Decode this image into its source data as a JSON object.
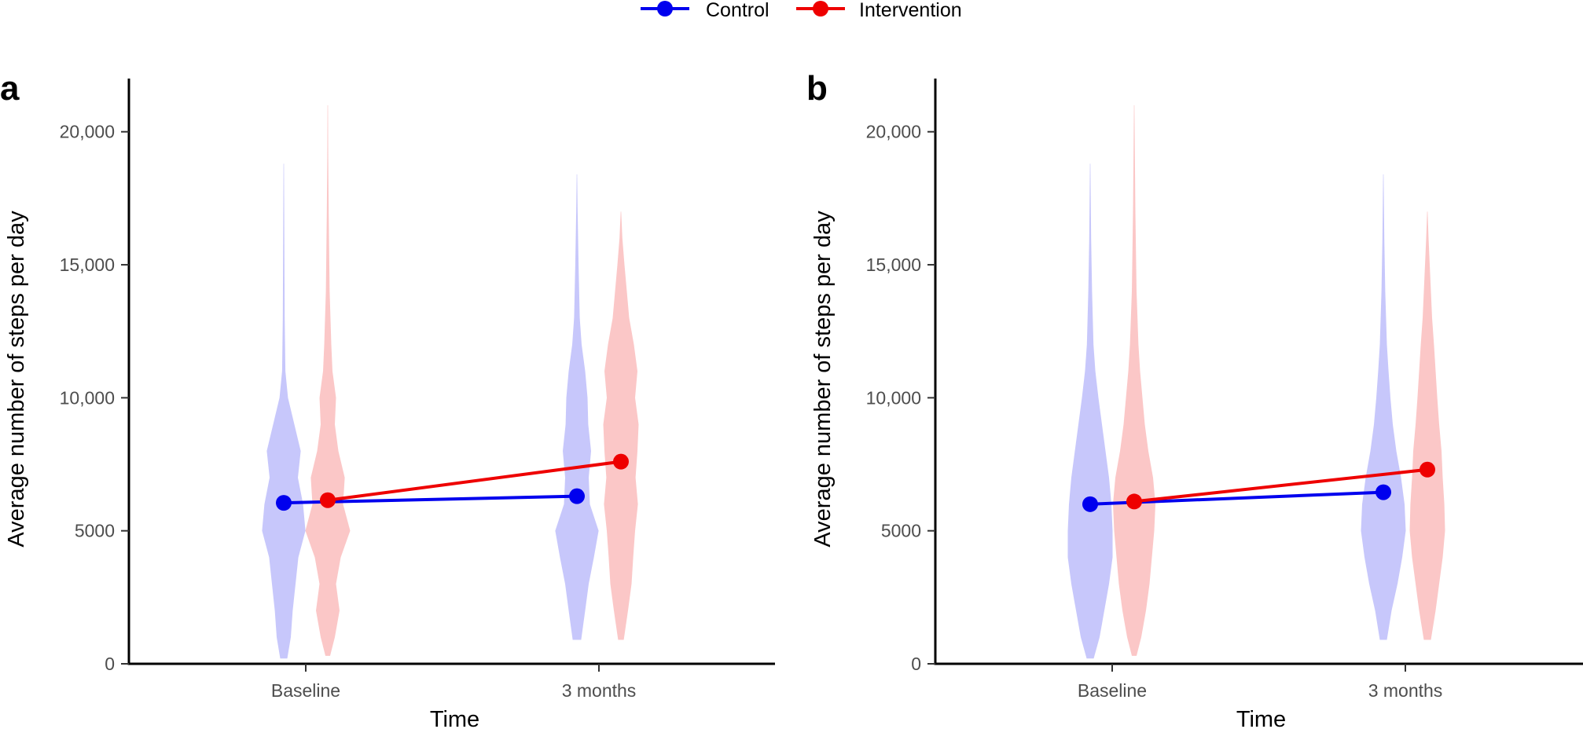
{
  "legend": [
    {
      "name": "Control",
      "color": "#0000ee"
    },
    {
      "name": "Intervention",
      "color": "#ee0000"
    }
  ],
  "chart_data": [
    {
      "type": "line",
      "panel_label": "a",
      "title": "",
      "xlabel": "Time",
      "ylabel": "Average number of steps per day",
      "categories": [
        "Baseline",
        "3 months"
      ],
      "ylim": [
        0,
        22000
      ],
      "yticks": [
        0,
        5000,
        10000,
        15000,
        20000
      ],
      "ytick_labels": [
        "0",
        "5000",
        "10,000",
        "15,000",
        "20,000"
      ],
      "grid": false,
      "legend_position": "top",
      "series": [
        {
          "name": "Control",
          "color": "#0000ee",
          "values": [
            6050,
            6300
          ],
          "distributions": [
            {
              "min": 200,
              "max": 18800,
              "profile": [
                [
                  200,
                  0.15
                ],
                [
                  1000,
                  0.3
                ],
                [
                  2000,
                  0.38
                ],
                [
                  3000,
                  0.5
                ],
                [
                  4000,
                  0.62
                ],
                [
                  5000,
                  0.92
                ],
                [
                  6000,
                  0.82
                ],
                [
                  7000,
                  0.6
                ],
                [
                  8000,
                  0.72
                ],
                [
                  9000,
                  0.45
                ],
                [
                  10000,
                  0.18
                ],
                [
                  11000,
                  0.07
                ],
                [
                  13000,
                  0.04
                ],
                [
                  15000,
                  0.03
                ],
                [
                  17000,
                  0.02
                ],
                [
                  18800,
                  0.01
                ]
              ]
            },
            {
              "min": 900,
              "max": 18400,
              "profile": [
                [
                  900,
                  0.18
                ],
                [
                  2000,
                  0.35
                ],
                [
                  3000,
                  0.5
                ],
                [
                  4000,
                  0.72
                ],
                [
                  5000,
                  0.92
                ],
                [
                  6000,
                  0.55
                ],
                [
                  7000,
                  0.5
                ],
                [
                  8000,
                  0.6
                ],
                [
                  9000,
                  0.48
                ],
                [
                  10000,
                  0.45
                ],
                [
                  11000,
                  0.35
                ],
                [
                  12000,
                  0.2
                ],
                [
                  13000,
                  0.12
                ],
                [
                  15000,
                  0.07
                ],
                [
                  17000,
                  0.03
                ],
                [
                  18400,
                  0.01
                ]
              ]
            }
          ]
        },
        {
          "name": "Intervention",
          "color": "#ee0000",
          "values": [
            6150,
            7600
          ],
          "distributions": [
            {
              "min": 300,
              "max": 21000,
              "profile": [
                [
                  300,
                  0.1
                ],
                [
                  1000,
                  0.3
                ],
                [
                  2000,
                  0.5
                ],
                [
                  3000,
                  0.35
                ],
                [
                  4000,
                  0.55
                ],
                [
                  5000,
                  0.95
                ],
                [
                  6000,
                  0.65
                ],
                [
                  7000,
                  0.72
                ],
                [
                  8000,
                  0.45
                ],
                [
                  9000,
                  0.3
                ],
                [
                  10000,
                  0.35
                ],
                [
                  11000,
                  0.2
                ],
                [
                  12000,
                  0.15
                ],
                [
                  14000,
                  0.08
                ],
                [
                  17000,
                  0.04
                ],
                [
                  19000,
                  0.02
                ],
                [
                  21000,
                  0.01
                ]
              ]
            },
            {
              "min": 900,
              "max": 17000,
              "profile": [
                [
                  900,
                  0.12
                ],
                [
                  2000,
                  0.3
                ],
                [
                  3000,
                  0.45
                ],
                [
                  4000,
                  0.52
                ],
                [
                  5000,
                  0.6
                ],
                [
                  6000,
                  0.72
                ],
                [
                  7000,
                  0.62
                ],
                [
                  8000,
                  0.7
                ],
                [
                  9000,
                  0.75
                ],
                [
                  10000,
                  0.6
                ],
                [
                  11000,
                  0.7
                ],
                [
                  12000,
                  0.55
                ],
                [
                  13000,
                  0.35
                ],
                [
                  14000,
                  0.25
                ],
                [
                  15000,
                  0.15
                ],
                [
                  16000,
                  0.06
                ],
                [
                  17000,
                  0.01
                ]
              ]
            }
          ]
        }
      ]
    },
    {
      "type": "line",
      "panel_label": "b",
      "title": "",
      "xlabel": "Time",
      "ylabel": "Average number of steps per day",
      "categories": [
        "Baseline",
        "3 months"
      ],
      "ylim": [
        0,
        22000
      ],
      "yticks": [
        0,
        5000,
        10000,
        15000,
        20000
      ],
      "ytick_labels": [
        "0",
        "5000",
        "10,000",
        "15,000",
        "20,000"
      ],
      "grid": false,
      "series": [
        {
          "name": "Control",
          "color": "#0000ee",
          "values": [
            6000,
            6450
          ],
          "distributions": [
            {
              "min": 200,
              "max": 18800,
              "profile": [
                [
                  200,
                  0.15
                ],
                [
                  1000,
                  0.4
                ],
                [
                  2000,
                  0.6
                ],
                [
                  3000,
                  0.8
                ],
                [
                  4000,
                  0.95
                ],
                [
                  5000,
                  0.95
                ],
                [
                  6000,
                  0.9
                ],
                [
                  7000,
                  0.8
                ],
                [
                  8000,
                  0.65
                ],
                [
                  9000,
                  0.5
                ],
                [
                  10000,
                  0.35
                ],
                [
                  11000,
                  0.22
                ],
                [
                  12000,
                  0.14
                ],
                [
                  14000,
                  0.08
                ],
                [
                  16000,
                  0.04
                ],
                [
                  18800,
                  0.01
                ]
              ]
            },
            {
              "min": 900,
              "max": 18400,
              "profile": [
                [
                  900,
                  0.15
                ],
                [
                  2000,
                  0.35
                ],
                [
                  3000,
                  0.6
                ],
                [
                  4000,
                  0.8
                ],
                [
                  5000,
                  0.95
                ],
                [
                  6000,
                  0.9
                ],
                [
                  7000,
                  0.75
                ],
                [
                  8000,
                  0.55
                ],
                [
                  9000,
                  0.4
                ],
                [
                  10000,
                  0.3
                ],
                [
                  11000,
                  0.22
                ],
                [
                  12000,
                  0.15
                ],
                [
                  14000,
                  0.08
                ],
                [
                  16000,
                  0.04
                ],
                [
                  18400,
                  0.01
                ]
              ]
            }
          ]
        },
        {
          "name": "Intervention",
          "color": "#ee0000",
          "values": [
            6100,
            7300
          ],
          "distributions": [
            {
              "min": 300,
              "max": 21000,
              "profile": [
                [
                  300,
                  0.1
                ],
                [
                  1000,
                  0.3
                ],
                [
                  2000,
                  0.5
                ],
                [
                  3000,
                  0.65
                ],
                [
                  4000,
                  0.75
                ],
                [
                  5000,
                  0.85
                ],
                [
                  6000,
                  0.9
                ],
                [
                  7000,
                  0.8
                ],
                [
                  8000,
                  0.6
                ],
                [
                  9000,
                  0.45
                ],
                [
                  10000,
                  0.35
                ],
                [
                  11000,
                  0.25
                ],
                [
                  12000,
                  0.18
                ],
                [
                  14000,
                  0.1
                ],
                [
                  17000,
                  0.05
                ],
                [
                  21000,
                  0.01
                ]
              ]
            },
            {
              "min": 900,
              "max": 17000,
              "profile": [
                [
                  900,
                  0.15
                ],
                [
                  2000,
                  0.35
                ],
                [
                  3000,
                  0.5
                ],
                [
                  4000,
                  0.65
                ],
                [
                  5000,
                  0.75
                ],
                [
                  6000,
                  0.72
                ],
                [
                  7000,
                  0.65
                ],
                [
                  8000,
                  0.6
                ],
                [
                  9000,
                  0.5
                ],
                [
                  10000,
                  0.42
                ],
                [
                  11000,
                  0.35
                ],
                [
                  12000,
                  0.28
                ],
                [
                  13000,
                  0.2
                ],
                [
                  14000,
                  0.15
                ],
                [
                  15000,
                  0.1
                ],
                [
                  16000,
                  0.05
                ],
                [
                  17000,
                  0.01
                ]
              ]
            }
          ]
        }
      ]
    }
  ]
}
